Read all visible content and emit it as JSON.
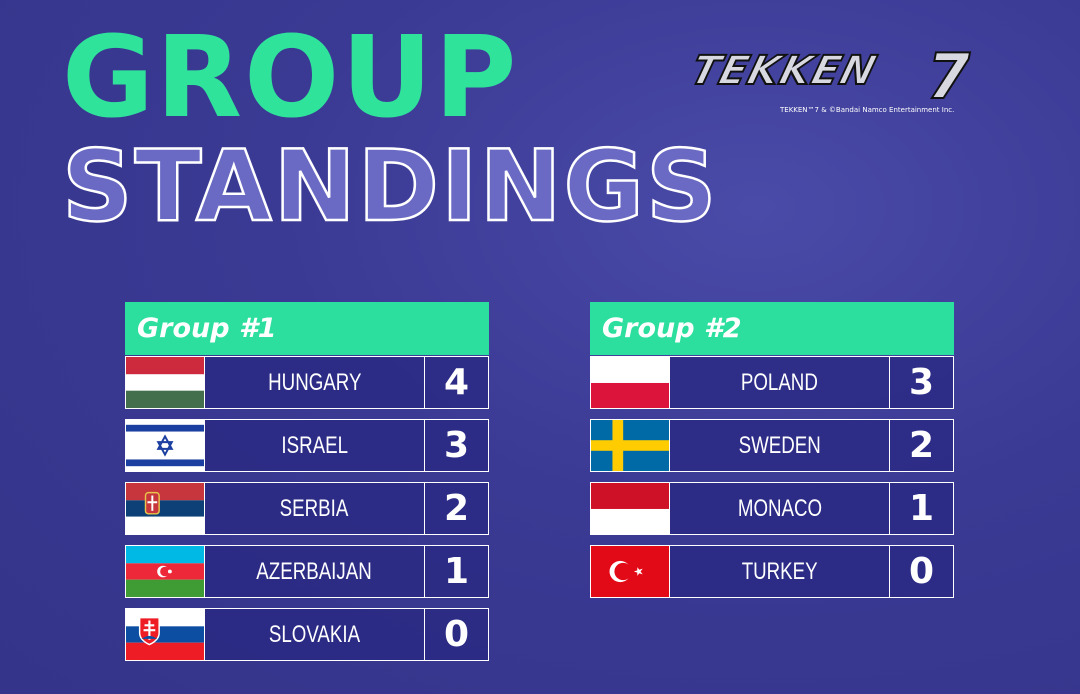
{
  "title": {
    "line1": "GROUP",
    "line2": "STANDINGS"
  },
  "logo": {
    "text": "TEKKEN",
    "number": "7",
    "copyright": "TEKKEN™7 & ©Bandai Namco Entertainment Inc."
  },
  "colors": {
    "accent": "#2ddf9e",
    "background": "#3a3a94"
  },
  "groups": [
    {
      "title": "Group #1",
      "rows": [
        {
          "country": "HUNGARY",
          "flag": "hungary-flag",
          "score": "4"
        },
        {
          "country": "ISRAEL",
          "flag": "israel-flag",
          "score": "3"
        },
        {
          "country": "SERBIA",
          "flag": "serbia-flag",
          "score": "2"
        },
        {
          "country": "AZERBAIJAN",
          "flag": "azerbaijan-flag",
          "score": "1"
        },
        {
          "country": "SLOVAKIA",
          "flag": "slovakia-flag",
          "score": "0"
        }
      ]
    },
    {
      "title": "Group #2",
      "rows": [
        {
          "country": "POLAND",
          "flag": "poland-flag",
          "score": "3"
        },
        {
          "country": "SWEDEN",
          "flag": "sweden-flag",
          "score": "2"
        },
        {
          "country": "MONACO",
          "flag": "monaco-flag",
          "score": "1"
        },
        {
          "country": "TURKEY",
          "flag": "turkey-flag",
          "score": "0"
        }
      ]
    }
  ]
}
